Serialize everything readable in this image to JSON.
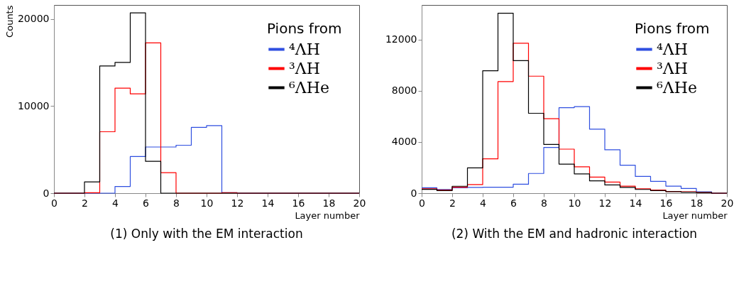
{
  "chart_data": [
    {
      "type": "histogram",
      "title": "(1) Only with the EM interaction",
      "xlabel": "Layer number",
      "ylabel": "Counts",
      "legend_title": "Pions from",
      "legend": "top right",
      "bins": [
        0,
        1,
        2,
        3,
        4,
        5,
        6,
        7,
        8,
        9,
        10,
        11,
        12,
        13,
        14,
        15,
        16,
        17,
        18,
        19,
        20
      ],
      "xlim": [
        0,
        20
      ],
      "xticks": [
        0,
        2,
        4,
        6,
        8,
        10,
        12,
        14,
        16,
        18,
        20
      ],
      "ylim": [
        0,
        21600
      ],
      "yticks": [
        0,
        10000,
        20000
      ],
      "series": [
        {
          "name": "⁴ΛH",
          "color": "#2f4fe0",
          "values": [
            0,
            0,
            0,
            0,
            770,
            4200,
            5300,
            5300,
            5500,
            7550,
            7750,
            50,
            0,
            0,
            0,
            0,
            0,
            0,
            0,
            0
          ]
        },
        {
          "name": "³ΛH",
          "color": "#ff0000",
          "values": [
            0,
            0,
            50,
            7050,
            12050,
            11400,
            17250,
            2350,
            0,
            0,
            0,
            50,
            0,
            0,
            0,
            0,
            0,
            0,
            0,
            0
          ]
        },
        {
          "name": "⁶ΛHe",
          "color": "#000000",
          "values": [
            0,
            0,
            1300,
            14600,
            15000,
            20700,
            3650,
            0,
            0,
            0,
            0,
            0,
            0,
            0,
            0,
            0,
            0,
            0,
            0,
            0
          ]
        }
      ]
    },
    {
      "type": "histogram",
      "title": "(2) With the EM and hadronic interaction",
      "xlabel": "Layer number",
      "legend_title": "Pions from",
      "legend": "top right",
      "bins": [
        0,
        1,
        2,
        3,
        4,
        5,
        6,
        7,
        8,
        9,
        10,
        11,
        12,
        13,
        14,
        15,
        16,
        17,
        18,
        19,
        20
      ],
      "xlim": [
        0,
        20
      ],
      "xticks": [
        0,
        2,
        4,
        6,
        8,
        10,
        12,
        14,
        16,
        18,
        20
      ],
      "ylim": [
        0,
        14700
      ],
      "yticks": [
        0,
        4000,
        8000,
        12000
      ],
      "series": [
        {
          "name": "⁴ΛH",
          "color": "#2f4fe0",
          "values": [
            420,
            290,
            420,
            450,
            470,
            470,
            700,
            1540,
            3570,
            6680,
            6760,
            5000,
            3390,
            2180,
            1310,
            920,
            550,
            370,
            100,
            0
          ]
        },
        {
          "name": "³ΛH",
          "color": "#ff0000",
          "values": [
            340,
            250,
            470,
            670,
            2680,
            8720,
            11710,
            9140,
            5820,
            3440,
            2060,
            1260,
            870,
            550,
            340,
            250,
            130,
            100,
            50,
            0
          ]
        },
        {
          "name": "⁶ΛHe",
          "color": "#000000",
          "values": [
            300,
            200,
            540,
            1980,
            9560,
            14060,
            10350,
            6240,
            3810,
            2270,
            1510,
            960,
            640,
            450,
            290,
            200,
            120,
            80,
            50,
            0
          ]
        }
      ]
    }
  ]
}
